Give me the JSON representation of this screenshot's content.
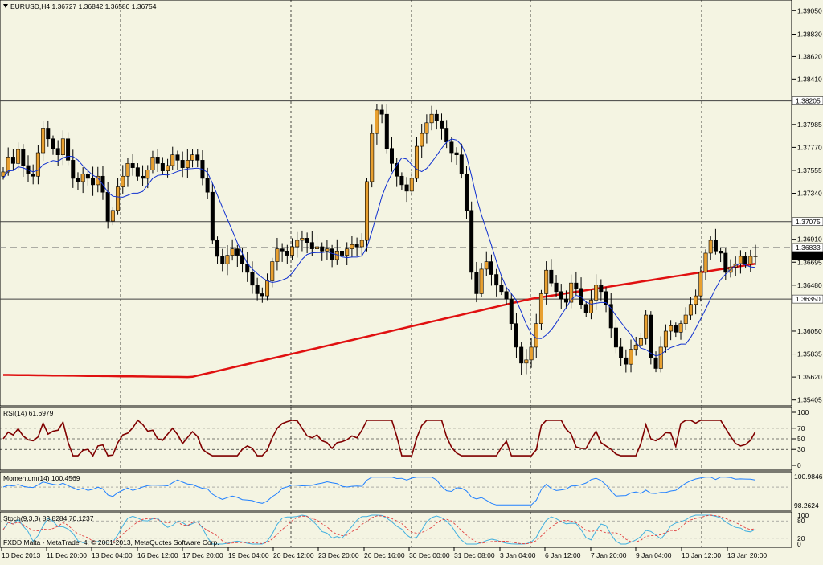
{
  "header": {
    "main": "EURUSD,H4  1.36727 1.36842 1.36580 1.36754",
    "rsi": "RSI(14) 61.6979",
    "momentum": "Momentum(14) 100.4569",
    "stoch": "Stoch(9,3,3) 83.8284 70.1237",
    "copyright": "FXDD Malta - MetaTrader 4, © 2001-2013, MetaQuotes Software Corp."
  },
  "colors": {
    "background": "#f4f4e2",
    "bull": "#e8a030",
    "bear": "#000000",
    "ma_slow": "#e01010",
    "ma_fast": "#1030d0",
    "rsi": "#800000",
    "momentum": "#2080ff",
    "stoch_main": "#40b0e0",
    "stoch_signal": "#e04040"
  },
  "price_labels": [
    "1.39050",
    "1.38830",
    "1.38620",
    "1.38410",
    "1.37985",
    "1.37770",
    "1.37555",
    "1.37340",
    "1.36910",
    "1.36695",
    "1.36480",
    "1.36050",
    "1.35835",
    "1.35620",
    "1.35405"
  ],
  "hline_labels": [
    "1.38205",
    "1.37075",
    "1.36833",
    "1.36754",
    "1.36350"
  ],
  "rsi_labels": [
    "100",
    "70",
    "50",
    "30",
    "0"
  ],
  "mom_labels": [
    "100.9846",
    "98.2624"
  ],
  "stoch_labels": [
    "100",
    "80",
    "20",
    "0"
  ],
  "time_labels": [
    "10 Dec 2013",
    "11 Dec 20:00",
    "13 Dec 04:00",
    "16 Dec 12:00",
    "17 Dec 20:00",
    "19 Dec 04:00",
    "20 Dec 12:00",
    "23 Dec 20:00",
    "26 Dec 16:00",
    "30 Dec 00:00",
    "31 Dec 08:00",
    "3 Jan 04:00",
    "6 Jan 12:00",
    "7 Jan 20:00",
    "9 Jan 04:00",
    "10 Jan 12:00",
    "13 Jan 20:00"
  ],
  "chart_data": {
    "type": "candlestick",
    "symbol": "EURUSD",
    "timeframe": "H4",
    "last": {
      "open": 1.36727,
      "high": 1.36842,
      "low": 1.3658,
      "close": 1.36754
    },
    "ylim": [
      1.3535,
      1.3915
    ],
    "horizontal_levels": [
      1.38205,
      1.37075,
      1.36833,
      1.3635
    ],
    "close_series": [
      1.3754,
      1.3768,
      1.3762,
      1.3775,
      1.376,
      1.3752,
      1.375,
      1.3772,
      1.3795,
      1.3785,
      1.3776,
      1.377,
      1.3785,
      1.3765,
      1.3748,
      1.3745,
      1.3752,
      1.3748,
      1.3742,
      1.375,
      1.3735,
      1.3708,
      1.3718,
      1.374,
      1.375,
      1.3762,
      1.3758,
      1.375,
      1.3748,
      1.3756,
      1.3768,
      1.3762,
      1.3755,
      1.376,
      1.377,
      1.3765,
      1.3758,
      1.3765,
      1.377,
      1.3765,
      1.3748,
      1.3735,
      1.369,
      1.3675,
      1.3668,
      1.3676,
      1.3682,
      1.3676,
      1.3668,
      1.366,
      1.3648,
      1.364,
      1.3638,
      1.3652,
      1.367,
      1.3682,
      1.368,
      1.3676,
      1.3684,
      1.369,
      1.3692,
      1.3688,
      1.3682,
      1.3684,
      1.368,
      1.3682,
      1.3672,
      1.368,
      1.3676,
      1.3682,
      1.3686,
      1.3684,
      1.369,
      1.3745,
      1.379,
      1.3812,
      1.3808,
      1.3776,
      1.3762,
      1.375,
      1.3742,
      1.3736,
      1.3748,
      1.3778,
      1.379,
      1.38,
      1.3808,
      1.3802,
      1.3795,
      1.3782,
      1.3772,
      1.377,
      1.3752,
      1.3718,
      1.366,
      1.364,
      1.3663,
      1.367,
      1.3658,
      1.3648,
      1.3642,
      1.3635,
      1.3612,
      1.359,
      1.3575,
      1.3578,
      1.359,
      1.3612,
      1.364,
      1.3662,
      1.365,
      1.3642,
      1.3635,
      1.3632,
      1.365,
      1.3645,
      1.363,
      1.3622,
      1.3634,
      1.3648,
      1.3642,
      1.363,
      1.3608,
      1.359,
      1.358,
      1.3574,
      1.3588,
      1.3592,
      1.3598,
      1.362,
      1.358,
      1.357,
      1.359,
      1.3605,
      1.361,
      1.3604,
      1.3612,
      1.362,
      1.363,
      1.3638,
      1.366,
      1.3678,
      1.369,
      1.368,
      1.3678,
      1.366,
      1.3665,
      1.3668,
      1.3675,
      1.3668,
      1.3675,
      1.36754
    ],
    "ma_fast_period": "fast MA (blue)",
    "ma_slow_period": "slow MA (red)",
    "indicators": {
      "rsi": {
        "period": 14,
        "value": 61.6979,
        "levels": [
          70,
          50,
          30
        ],
        "ylim": [
          0,
          100
        ]
      },
      "momentum": {
        "period": 14,
        "value": 100.4569,
        "ylim": [
          98.2624,
          100.9846
        ]
      },
      "stochastic": {
        "params": "9,3,3",
        "main": 83.8284,
        "signal": 70.1237,
        "levels": [
          80,
          20
        ],
        "ylim": [
          0,
          100
        ]
      }
    }
  }
}
